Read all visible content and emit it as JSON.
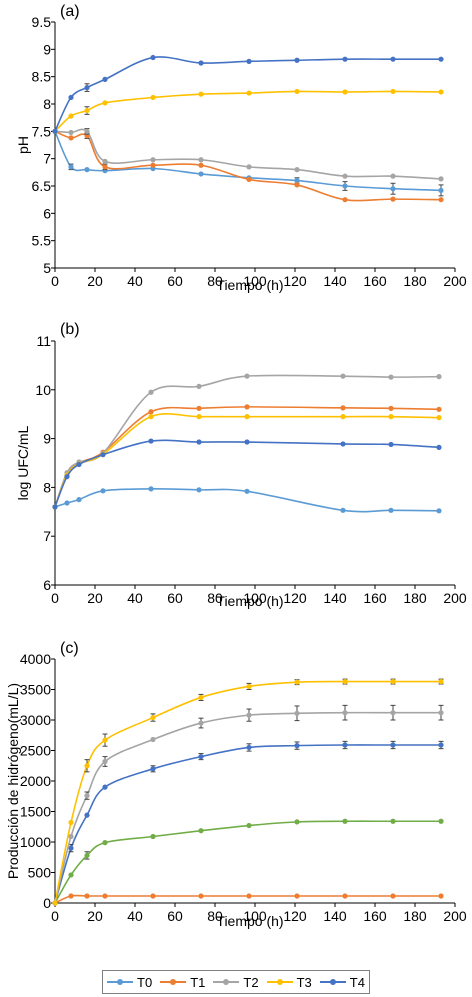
{
  "chart_data": [
    {
      "type": "line",
      "title": "(a)",
      "xlabel": "Tiempo (h)",
      "ylabel": "pH",
      "xlim": [
        0,
        200
      ],
      "ylim": [
        5,
        9.5
      ],
      "xticks": [
        0,
        20,
        40,
        60,
        80,
        100,
        120,
        140,
        160,
        180,
        200
      ],
      "yticks": [
        5,
        5.5,
        6,
        6.5,
        7,
        7.5,
        8,
        8.5,
        9,
        9.5
      ],
      "ytick_labels": [
        "5",
        "5.5",
        "6",
        "6.5",
        "7",
        "7.5",
        "8",
        "8.5",
        "9",
        "9.5"
      ],
      "grid": false,
      "series": [
        {
          "name": "T0",
          "color": "#5b9bd5",
          "x": [
            0,
            8,
            16,
            25,
            49,
            73,
            97,
            121,
            145,
            169,
            193
          ],
          "y": [
            7.5,
            6.85,
            6.8,
            6.78,
            6.82,
            6.72,
            6.65,
            6.6,
            6.5,
            6.45,
            6.42
          ],
          "err": [
            0,
            0.05,
            0,
            0,
            0,
            0,
            0,
            0.05,
            0.08,
            0.1,
            0.1
          ]
        },
        {
          "name": "T1",
          "color": "#ed7d31",
          "x": [
            0,
            8,
            16,
            25,
            49,
            73,
            97,
            121,
            145,
            169,
            193
          ],
          "y": [
            7.5,
            7.38,
            7.42,
            6.85,
            6.88,
            6.88,
            6.62,
            6.52,
            6.25,
            6.26,
            6.25
          ],
          "err": [
            0,
            0,
            0.05,
            0.05,
            0,
            0,
            0,
            0,
            0,
            0,
            0
          ]
        },
        {
          "name": "T2",
          "color": "#a5a5a5",
          "x": [
            0,
            8,
            16,
            25,
            49,
            73,
            97,
            121,
            145,
            169,
            193
          ],
          "y": [
            7.5,
            7.48,
            7.5,
            6.95,
            6.98,
            6.98,
            6.85,
            6.8,
            6.68,
            6.68,
            6.63
          ],
          "err": [
            0,
            0,
            0.05,
            0,
            0,
            0,
            0,
            0,
            0,
            0,
            0
          ]
        },
        {
          "name": "T3",
          "color": "#ffc000",
          "x": [
            0,
            8,
            16,
            25,
            49,
            73,
            97,
            121,
            145,
            169,
            193
          ],
          "y": [
            7.5,
            7.78,
            7.88,
            8.02,
            8.12,
            8.18,
            8.2,
            8.23,
            8.22,
            8.23,
            8.22
          ],
          "err": [
            0,
            0,
            0.07,
            0,
            0,
            0,
            0,
            0,
            0,
            0,
            0
          ]
        },
        {
          "name": "T4",
          "color": "#4472c4",
          "x": [
            0,
            8,
            16,
            25,
            49,
            73,
            97,
            121,
            145,
            169,
            193
          ],
          "y": [
            7.5,
            8.12,
            8.3,
            8.45,
            8.85,
            8.75,
            8.78,
            8.8,
            8.82,
            8.82,
            8.82
          ],
          "err": [
            0,
            0,
            0.07,
            0,
            0,
            0,
            0,
            0,
            0,
            0,
            0
          ]
        }
      ]
    },
    {
      "type": "line",
      "title": "(b)",
      "xlabel": "Tiempo (h)",
      "ylabel": "log UFC/mL",
      "xlim": [
        0,
        200
      ],
      "ylim": [
        6,
        11
      ],
      "xticks": [
        0,
        20,
        40,
        60,
        80,
        100,
        120,
        140,
        160,
        180,
        200
      ],
      "yticks": [
        6,
        7,
        8,
        9,
        10,
        11
      ],
      "ytick_labels": [
        "6",
        "7",
        "8",
        "9",
        "10",
        "11"
      ],
      "grid": false,
      "series": [
        {
          "name": "T0",
          "color": "#5b9bd5",
          "x": [
            0,
            6,
            12,
            24,
            48,
            72,
            96,
            144,
            168,
            192
          ],
          "y": [
            7.6,
            7.68,
            7.75,
            7.93,
            7.97,
            7.95,
            7.92,
            7.53,
            7.53,
            7.52
          ],
          "err": [
            0,
            0,
            0,
            0,
            0,
            0,
            0,
            0,
            0,
            0
          ]
        },
        {
          "name": "T1",
          "color": "#ed7d31",
          "x": [
            0,
            6,
            12,
            24,
            48,
            72,
            96,
            144,
            168,
            192
          ],
          "y": [
            7.6,
            8.25,
            8.5,
            8.72,
            9.55,
            9.62,
            9.65,
            9.63,
            9.62,
            9.6
          ],
          "err": [
            0,
            0,
            0,
            0,
            0,
            0,
            0,
            0,
            0,
            0
          ]
        },
        {
          "name": "T2",
          "color": "#a5a5a5",
          "x": [
            0,
            6,
            12,
            24,
            48,
            72,
            96,
            144,
            168,
            192
          ],
          "y": [
            7.6,
            8.3,
            8.52,
            8.7,
            9.95,
            10.07,
            10.28,
            10.28,
            10.26,
            10.27
          ],
          "err": [
            0,
            0,
            0,
            0,
            0,
            0,
            0,
            0,
            0,
            0
          ]
        },
        {
          "name": "T3",
          "color": "#ffc000",
          "x": [
            0,
            6,
            12,
            24,
            48,
            72,
            96,
            144,
            168,
            192
          ],
          "y": [
            7.6,
            8.25,
            8.48,
            8.68,
            9.45,
            9.45,
            9.45,
            9.45,
            9.45,
            9.43
          ],
          "err": [
            0,
            0,
            0,
            0,
            0,
            0,
            0,
            0,
            0,
            0
          ]
        },
        {
          "name": "T4",
          "color": "#4472c4",
          "x": [
            0,
            6,
            12,
            24,
            48,
            72,
            96,
            144,
            168,
            192
          ],
          "y": [
            7.6,
            8.22,
            8.47,
            8.67,
            8.95,
            8.93,
            8.93,
            8.89,
            8.88,
            8.82
          ],
          "err": [
            0,
            0,
            0,
            0,
            0,
            0,
            0,
            0,
            0,
            0
          ]
        }
      ]
    },
    {
      "type": "line",
      "title": "(c)",
      "xlabel": "Tiempo (h)",
      "ylabel": "Producción de hidrógeno(mL/L)",
      "xlim": [
        0,
        200
      ],
      "ylim": [
        0,
        4000
      ],
      "xticks": [
        0,
        20,
        40,
        60,
        80,
        100,
        120,
        140,
        160,
        180,
        200
      ],
      "yticks": [
        0,
        500,
        1000,
        1500,
        2000,
        2500,
        3000,
        3500,
        4000
      ],
      "ytick_labels": [
        "0",
        "500",
        "1000",
        "1500",
        "2000",
        "2500",
        "3000",
        "3500",
        "4000"
      ],
      "grid": false,
      "series": [
        {
          "name": "T1",
          "color": "#ed7d31",
          "x": [
            0,
            8,
            16,
            25,
            49,
            73,
            97,
            121,
            145,
            169,
            193
          ],
          "y": [
            0,
            115,
            115,
            115,
            115,
            115,
            115,
            115,
            115,
            115,
            115
          ],
          "err": [
            0,
            0,
            0,
            0,
            0,
            0,
            0,
            0,
            0,
            0,
            0
          ]
        },
        {
          "name": "",
          "color": "#70ad47",
          "x": [
            0,
            8,
            16,
            25,
            49,
            73,
            97,
            121,
            145,
            169,
            193
          ],
          "y": [
            0,
            460,
            780,
            990,
            1090,
            1185,
            1270,
            1330,
            1340,
            1340,
            1340
          ],
          "err": [
            0,
            0,
            60,
            0,
            0,
            0,
            0,
            0,
            0,
            0,
            0
          ]
        },
        {
          "name": "T4",
          "color": "#4472c4",
          "x": [
            0,
            8,
            16,
            25,
            49,
            73,
            97,
            121,
            145,
            169,
            193
          ],
          "y": [
            0,
            900,
            1440,
            1900,
            2200,
            2400,
            2550,
            2580,
            2590,
            2590,
            2590
          ],
          "err": [
            0,
            60,
            0,
            0,
            50,
            50,
            60,
            60,
            60,
            60,
            60
          ]
        },
        {
          "name": "T2",
          "color": "#a5a5a5",
          "x": [
            0,
            8,
            16,
            25,
            49,
            73,
            97,
            121,
            145,
            169,
            193
          ],
          "y": [
            0,
            1090,
            1760,
            2320,
            2680,
            2950,
            3080,
            3110,
            3120,
            3120,
            3120
          ],
          "err": [
            0,
            0,
            60,
            80,
            0,
            80,
            100,
            120,
            120,
            120,
            120
          ]
        },
        {
          "name": "T3",
          "color": "#ffc000",
          "x": [
            0,
            8,
            16,
            25,
            49,
            73,
            97,
            121,
            145,
            169,
            193
          ],
          "y": [
            0,
            1320,
            2250,
            2670,
            3040,
            3370,
            3550,
            3620,
            3630,
            3630,
            3630
          ],
          "err": [
            0,
            0,
            100,
            100,
            60,
            50,
            50,
            40,
            40,
            40,
            40
          ]
        }
      ]
    }
  ],
  "legend": {
    "items": [
      {
        "name": "T0",
        "color": "#5b9bd5"
      },
      {
        "name": "T1",
        "color": "#ed7d31"
      },
      {
        "name": "T2",
        "color": "#a5a5a5"
      },
      {
        "name": "T3",
        "color": "#ffc000"
      },
      {
        "name": "T4",
        "color": "#4472c4"
      }
    ]
  }
}
